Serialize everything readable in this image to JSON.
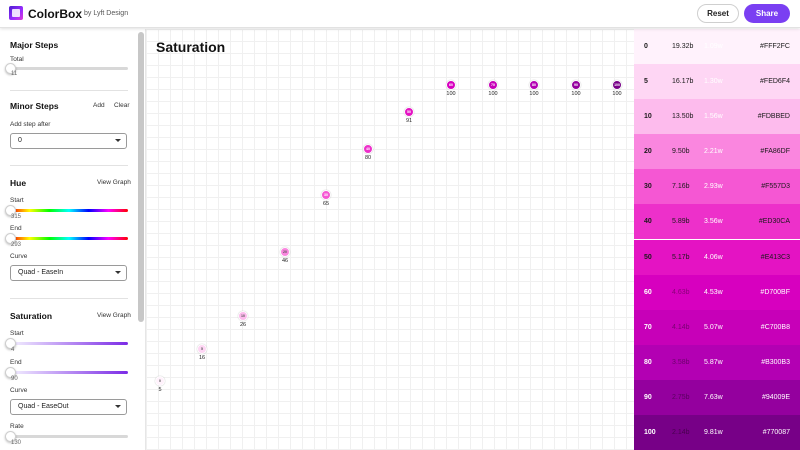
{
  "header": {
    "app_name": "ColorBox",
    "app_sub": "by Lyft Design",
    "reset_label": "Reset",
    "share_label": "Share"
  },
  "sidebar": {
    "major": {
      "title": "Major Steps",
      "total_label": "Total",
      "total_value": "11"
    },
    "minor": {
      "title": "Minor Steps",
      "add_label": "Add",
      "clear_label": "Clear",
      "after_label": "Add step after",
      "after_value": "0"
    },
    "hue": {
      "title": "Hue",
      "view_graph": "View Graph",
      "start_label": "Start",
      "start_value": "315",
      "end_label": "End",
      "end_value": "293",
      "curve_label": "Curve",
      "curve_value": "Quad - EaseIn"
    },
    "saturation": {
      "title": "Saturation",
      "view_graph": "View Graph",
      "start_label": "Start",
      "start_value": "4",
      "end_label": "End",
      "end_value": "90",
      "curve_label": "Curve",
      "curve_value": "Quad - EaseOut",
      "rate_label": "Rate",
      "rate_value": "130"
    }
  },
  "graph": {
    "title": "Saturation",
    "points": [
      {
        "step": "0",
        "value": "5",
        "color": "#FFF2FC",
        "text": "#555555"
      },
      {
        "step": "5",
        "value": "16",
        "color": "#FED6F4",
        "text": "#555555"
      },
      {
        "step": "10",
        "value": "26",
        "color": "#FDBBED",
        "text": "#555555"
      },
      {
        "step": "20",
        "value": "46",
        "color": "#FA86DF",
        "text": "#555555"
      },
      {
        "step": "30",
        "value": "65",
        "color": "#F557D3",
        "text": "#ffffff"
      },
      {
        "step": "40",
        "value": "80",
        "color": "#ED30CA",
        "text": "#ffffff"
      },
      {
        "step": "50",
        "value": "91",
        "color": "#E413C3",
        "text": "#ffffff"
      },
      {
        "step": "60",
        "value": "100",
        "color": "#D700BF",
        "text": "#ffffff"
      },
      {
        "step": "70",
        "value": "100",
        "color": "#C700B8",
        "text": "#ffffff"
      },
      {
        "step": "80",
        "value": "100",
        "color": "#B300B3",
        "text": "#ffffff"
      },
      {
        "step": "90",
        "value": "100",
        "color": "#94009E",
        "text": "#ffffff"
      },
      {
        "step": "100",
        "value": "100",
        "color": "#770087",
        "text": "#ffffff"
      }
    ]
  },
  "palette": [
    {
      "step": "0",
      "contrast_black": "19.32b",
      "contrast_white": "1.09w",
      "hex": "#FFF2FC",
      "color": "#FFF2FC",
      "text": "#1a1a1a",
      "faint": "#ffffff"
    },
    {
      "step": "5",
      "contrast_black": "16.17b",
      "contrast_white": "1.30w",
      "hex": "#FED6F4",
      "color": "#FED6F4",
      "text": "#1a1a1a",
      "faint": "#ffffff"
    },
    {
      "step": "10",
      "contrast_black": "13.50b",
      "contrast_white": "1.56w",
      "hex": "#FDBBED",
      "color": "#FDBBED",
      "text": "#1a1a1a",
      "faint": "#ffffff"
    },
    {
      "step": "20",
      "contrast_black": "9.50b",
      "contrast_white": "2.21w",
      "hex": "#FA86DF",
      "color": "#FA86DF",
      "text": "#1a1a1a",
      "faint": "#ffffff"
    },
    {
      "step": "30",
      "contrast_black": "7.16b",
      "contrast_white": "2.93w",
      "hex": "#F557D3",
      "color": "#F557D3",
      "text": "#1a1a1a",
      "faint": "#ffffff"
    },
    {
      "step": "40",
      "contrast_black": "5.89b",
      "contrast_white": "3.56w",
      "hex": "#ED30CA",
      "color": "#ED30CA",
      "text": "#1a1a1a",
      "faint": "#ffffff"
    },
    {
      "step": "50",
      "contrast_black": "5.17b",
      "contrast_white": "4.06w",
      "hex": "#E413C3",
      "color": "#E413C3",
      "text": "#1a1a1a",
      "faint": "#ffffff"
    },
    {
      "step": "60",
      "contrast_black": "4.63b",
      "contrast_white": "4.53w",
      "hex": "#D700BF",
      "color": "#D700BF",
      "text": "#ffffff",
      "faint": "#8a007a"
    },
    {
      "step": "70",
      "contrast_black": "4.14b",
      "contrast_white": "5.07w",
      "hex": "#C700B8",
      "color": "#C700B8",
      "text": "#ffffff",
      "faint": "#7a0072"
    },
    {
      "step": "80",
      "contrast_black": "3.58b",
      "contrast_white": "5.87w",
      "hex": "#B300B3",
      "color": "#B300B3",
      "text": "#ffffff",
      "faint": "#6c006c"
    },
    {
      "step": "90",
      "contrast_black": "2.75b",
      "contrast_white": "7.63w",
      "hex": "#94009E",
      "color": "#94009E",
      "text": "#ffffff",
      "faint": "#5a0060"
    },
    {
      "step": "100",
      "contrast_black": "2.14b",
      "contrast_white": "9.81w",
      "hex": "#770087",
      "color": "#770087",
      "text": "#ffffff",
      "faint": "#48004f"
    }
  ]
}
